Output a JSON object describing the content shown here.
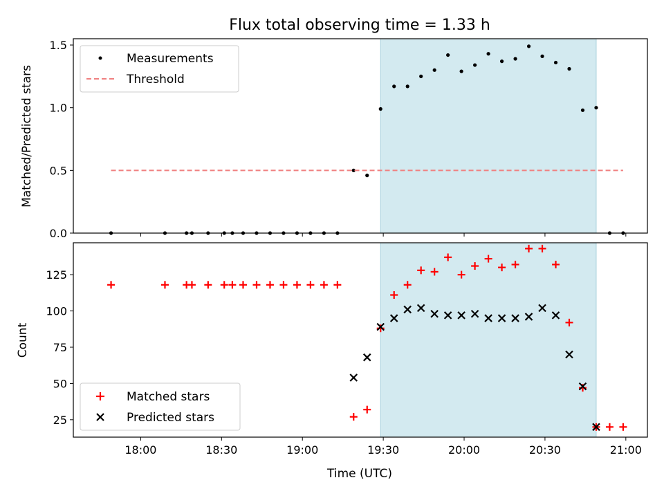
{
  "chart_data": [
    {
      "type": "scatter",
      "title": "Flux total observing time = 1.33 h",
      "ylabel": "Matched/Predicted stars",
      "xlabel": "",
      "ylim": [
        0,
        1.55
      ],
      "yticks": [
        "0.0",
        "0.5",
        "1.0",
        "1.5"
      ],
      "legend_placement": "top-left",
      "series": [
        {
          "name": "Measurements",
          "marker": "dot",
          "color": "#000000",
          "x": [
            "17:49",
            "18:09",
            "18:17",
            "18:19",
            "18:25",
            "18:31",
            "18:34",
            "18:38",
            "18:43",
            "18:48",
            "18:53",
            "18:58",
            "19:03",
            "19:08",
            "19:13",
            "19:19",
            "19:24",
            "19:29",
            "19:34",
            "19:39",
            "19:44",
            "19:49",
            "19:54",
            "19:59",
            "20:04",
            "20:09",
            "20:14",
            "20:19",
            "20:24",
            "20:29",
            "20:34",
            "20:39",
            "20:44",
            "20:49",
            "20:54",
            "20:59"
          ],
          "y": [
            0,
            0,
            0,
            0,
            0,
            0,
            0,
            0,
            0,
            0,
            0,
            0,
            0,
            0,
            0,
            0.5,
            0.46,
            0.99,
            1.17,
            1.17,
            1.25,
            1.3,
            1.42,
            1.29,
            1.34,
            1.43,
            1.37,
            1.39,
            1.49,
            1.41,
            1.36,
            1.31,
            0.98,
            1.0,
            0,
            0
          ]
        },
        {
          "name": "Threshold",
          "style": "dashed",
          "color": "#f08080",
          "x": [
            "17:49",
            "20:59"
          ],
          "y": [
            0.5,
            0.5
          ]
        }
      ],
      "shaded_span": [
        "19:29",
        "20:49"
      ],
      "shade_color": "#d3eaf0"
    },
    {
      "type": "scatter",
      "xlabel": "Time (UTC)",
      "ylabel": "Count",
      "ylim": [
        13,
        147
      ],
      "yticks": [
        "25",
        "50",
        "75",
        "100",
        "125"
      ],
      "xticks": [
        "18:00",
        "18:30",
        "19:00",
        "19:30",
        "20:00",
        "20:30",
        "21:00"
      ],
      "legend_placement": "bottom-left",
      "series": [
        {
          "name": "Matched stars",
          "marker": "plus",
          "color": "#ff0000",
          "x": [
            "17:49",
            "18:09",
            "18:17",
            "18:19",
            "18:25",
            "18:31",
            "18:34",
            "18:38",
            "18:43",
            "18:48",
            "18:53",
            "18:58",
            "19:03",
            "19:08",
            "19:13",
            "19:19",
            "19:24",
            "19:29",
            "19:34",
            "19:39",
            "19:44",
            "19:49",
            "19:54",
            "19:59",
            "20:04",
            "20:09",
            "20:14",
            "20:19",
            "20:24",
            "20:29",
            "20:34",
            "20:39",
            "20:44",
            "20:49",
            "20:54",
            "20:59"
          ],
          "y": [
            118,
            118,
            118,
            118,
            118,
            118,
            118,
            118,
            118,
            118,
            118,
            118,
            118,
            118,
            118,
            27,
            32,
            88,
            111,
            118,
            128,
            127,
            137,
            125,
            131,
            136,
            130,
            132,
            143,
            143,
            132,
            92,
            47,
            20,
            20,
            20
          ]
        },
        {
          "name": "Predicted stars",
          "marker": "x",
          "color": "#000000",
          "x": [
            "19:19",
            "19:24",
            "19:29",
            "19:34",
            "19:39",
            "19:44",
            "19:49",
            "19:54",
            "19:59",
            "20:04",
            "20:09",
            "20:14",
            "20:19",
            "20:24",
            "20:29",
            "20:34",
            "20:39",
            "20:44",
            "20:49"
          ],
          "y": [
            54,
            68,
            89,
            95,
            101,
            102,
            98,
            97,
            97,
            98,
            95,
            95,
            95,
            96,
            102,
            97,
            70,
            48,
            20
          ]
        }
      ],
      "shaded_span": [
        "19:29",
        "20:49"
      ],
      "shade_color": "#d3eaf0"
    }
  ],
  "x_axis_range": [
    "17:35",
    "21:08"
  ]
}
